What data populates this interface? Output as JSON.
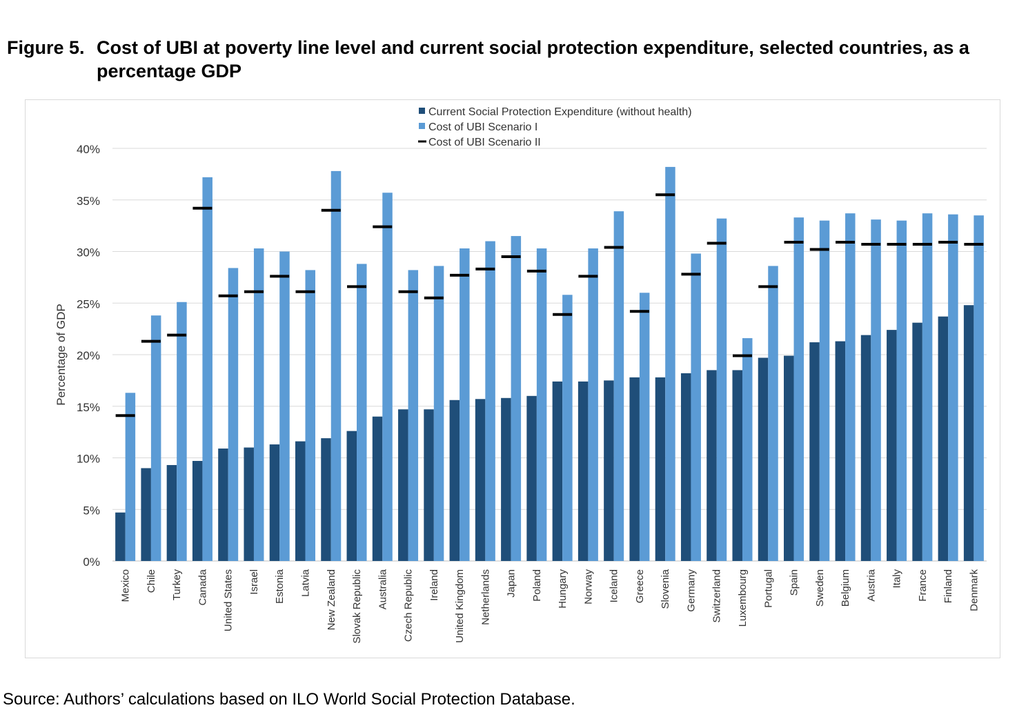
{
  "figure": {
    "label": "Figure 5.",
    "title": "Cost of UBI at poverty line level and current social protection expenditure, selected countries, as a percentage GDP"
  },
  "source": "Source: Authors’ calculations based on ILO World Social Protection Database.",
  "colors": {
    "current": "#1f4e79",
    "scenario1": "#5b9bd5",
    "scenario2": "#000000",
    "grid": "#d9d9d9"
  },
  "chart_data": {
    "type": "bar",
    "title": "",
    "xlabel": "",
    "ylabel": "Percentage of GDP",
    "ylim": [
      0,
      40
    ],
    "yticks": [
      "0%",
      "5%",
      "10%",
      "15%",
      "20%",
      "25%",
      "30%",
      "35%",
      "40%"
    ],
    "ytick_values": [
      0,
      5,
      10,
      15,
      20,
      25,
      30,
      35,
      40
    ],
    "grid": true,
    "legend_position": "top-center",
    "categories": [
      "Mexico",
      "Chile",
      "Turkey",
      "Canada",
      "United States",
      "Israel",
      "Estonia",
      "Latvia",
      "New Zealand",
      "Slovak Republic",
      "Australia",
      "Czech Republic",
      "Ireland",
      "United Kingdom",
      "Netherlands",
      "Japan",
      "Poland",
      "Hungary",
      "Norway",
      "Iceland",
      "Greece",
      "Slovenia",
      "Germany",
      "Switzerland",
      "Luxembourg",
      "Portugal",
      "Spain",
      "Sweden",
      "Belgium",
      "Austria",
      "Italy",
      "France",
      "Finland",
      "Denmark"
    ],
    "series": [
      {
        "name": "Current Social Protection Expenditure (without health)",
        "type": "bar",
        "values": [
          4.7,
          9.0,
          9.3,
          9.7,
          10.9,
          11.0,
          11.3,
          11.6,
          11.9,
          12.6,
          14.0,
          14.7,
          14.7,
          15.6,
          15.7,
          15.8,
          16.0,
          17.4,
          17.4,
          17.5,
          17.8,
          17.8,
          18.2,
          18.5,
          18.5,
          19.7,
          19.9,
          21.2,
          21.3,
          21.9,
          22.4,
          23.1,
          23.7,
          24.8
        ]
      },
      {
        "name": "Cost of UBI Scenario I",
        "type": "bar",
        "values": [
          16.3,
          23.8,
          25.1,
          37.2,
          28.4,
          30.3,
          30.0,
          28.2,
          37.8,
          28.8,
          35.7,
          28.2,
          28.6,
          30.3,
          31.0,
          31.5,
          30.3,
          25.8,
          30.3,
          33.9,
          26.0,
          38.2,
          29.8,
          33.2,
          21.6,
          28.6,
          33.3,
          33.0,
          33.7,
          33.1,
          33.0,
          33.7,
          33.6,
          33.5
        ]
      },
      {
        "name": "Cost of UBI Scenario II",
        "type": "marker",
        "values": [
          14.1,
          21.3,
          21.9,
          34.2,
          25.7,
          26.1,
          27.6,
          26.1,
          34.0,
          26.6,
          32.4,
          26.1,
          25.5,
          27.7,
          28.3,
          29.5,
          28.1,
          23.9,
          27.6,
          30.4,
          24.2,
          35.5,
          27.8,
          30.8,
          19.9,
          26.6,
          30.9,
          30.2,
          30.9,
          30.7,
          30.7,
          30.7,
          30.9,
          30.7
        ]
      }
    ]
  }
}
